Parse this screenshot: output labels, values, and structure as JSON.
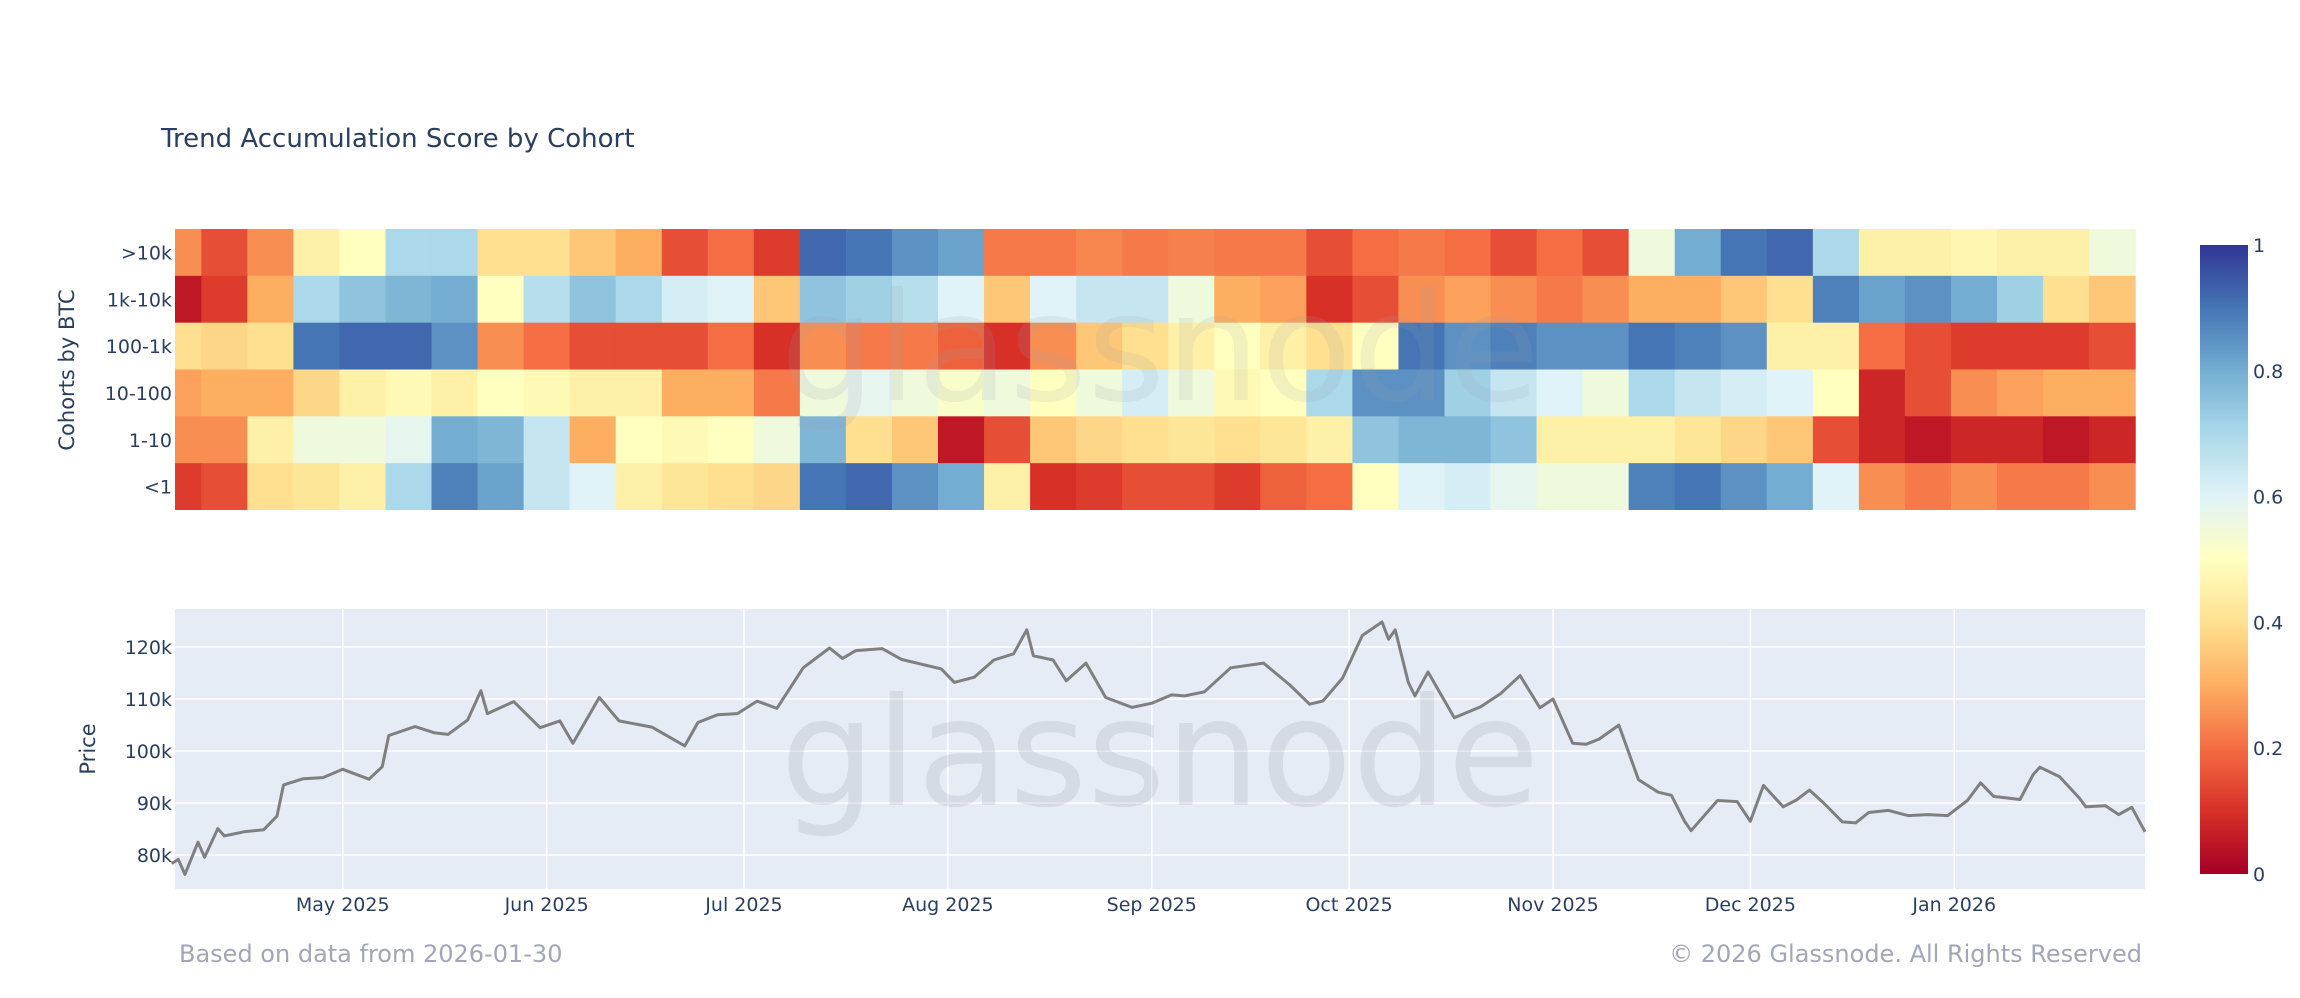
{
  "title": "Trend Accumulation Score by Cohort",
  "footer": {
    "left": "Based on data from 2026-01-30",
    "right": "© 2026 Glassnode. All Rights Reserved"
  },
  "watermark": "glassnode",
  "chart_data": [
    {
      "type": "heatmap",
      "title": "Trend Accumulation Score by Cohort",
      "ylabel": "Cohorts by BTC",
      "xrange": [
        "2025-04-05",
        "2026-01-30"
      ],
      "categories": [
        ">10k",
        "1k-10k",
        "100-1k",
        "10-100",
        "1-10",
        "<1"
      ],
      "x": [
        "2025-04-06",
        "2025-04-13",
        "2025-04-20",
        "2025-04-27",
        "2025-05-04",
        "2025-05-11",
        "2025-05-18",
        "2025-05-25",
        "2025-06-01",
        "2025-06-08",
        "2025-06-15",
        "2025-06-22",
        "2025-06-29",
        "2025-07-06",
        "2025-07-13",
        "2025-07-20",
        "2025-07-27",
        "2025-08-03",
        "2025-08-10",
        "2025-08-17",
        "2025-08-24",
        "2025-08-31",
        "2025-09-07",
        "2025-09-14",
        "2025-09-21",
        "2025-09-28",
        "2025-10-05",
        "2025-10-12",
        "2025-10-19",
        "2025-10-26",
        "2025-11-02",
        "2025-11-09",
        "2025-11-16",
        "2025-11-23",
        "2025-11-30",
        "2025-12-07",
        "2025-12-14",
        "2025-12-21",
        "2025-12-28",
        "2026-01-04",
        "2026-01-11",
        "2026-01-18",
        "2026-01-25"
      ],
      "z": [
        [
          0.25,
          0.15,
          0.25,
          0.45,
          0.5,
          0.7,
          0.7,
          0.4,
          0.4,
          0.35,
          0.3,
          0.15,
          0.2,
          0.12,
          0.92,
          0.9,
          0.85,
          0.82,
          0.22,
          0.22,
          0.24,
          0.22,
          0.23,
          0.22,
          0.22,
          0.15,
          0.2,
          0.22,
          0.2,
          0.15,
          0.2,
          0.15,
          0.55,
          0.8,
          0.9,
          0.92,
          0.7,
          0.45,
          0.45,
          0.47,
          0.45,
          0.45,
          0.55
        ],
        [
          0.05,
          0.12,
          0.3,
          0.7,
          0.75,
          0.78,
          0.8,
          0.5,
          0.68,
          0.75,
          0.7,
          0.62,
          0.6,
          0.35,
          0.75,
          0.72,
          0.68,
          0.6,
          0.35,
          0.6,
          0.65,
          0.65,
          0.55,
          0.3,
          0.28,
          0.1,
          0.15,
          0.25,
          0.28,
          0.25,
          0.22,
          0.25,
          0.3,
          0.3,
          0.35,
          0.4,
          0.88,
          0.82,
          0.85,
          0.8,
          0.72,
          0.4,
          0.35
        ],
        [
          0.4,
          0.38,
          0.4,
          0.9,
          0.92,
          0.92,
          0.85,
          0.25,
          0.2,
          0.15,
          0.15,
          0.15,
          0.2,
          0.1,
          0.25,
          0.22,
          0.22,
          0.18,
          0.1,
          0.25,
          0.35,
          0.4,
          0.45,
          0.5,
          0.45,
          0.4,
          0.5,
          0.9,
          0.85,
          0.88,
          0.85,
          0.85,
          0.9,
          0.88,
          0.85,
          0.45,
          0.45,
          0.2,
          0.15,
          0.12,
          0.12,
          0.12,
          0.15
        ],
        [
          0.28,
          0.3,
          0.3,
          0.38,
          0.45,
          0.48,
          0.45,
          0.5,
          0.48,
          0.45,
          0.45,
          0.3,
          0.3,
          0.22,
          0.55,
          0.58,
          0.55,
          0.52,
          0.55,
          0.5,
          0.55,
          0.62,
          0.55,
          0.48,
          0.5,
          0.7,
          0.85,
          0.85,
          0.72,
          0.65,
          0.6,
          0.55,
          0.7,
          0.65,
          0.62,
          0.6,
          0.5,
          0.08,
          0.15,
          0.25,
          0.28,
          0.3,
          0.3
        ],
        [
          0.25,
          0.25,
          0.45,
          0.55,
          0.55,
          0.58,
          0.8,
          0.78,
          0.65,
          0.3,
          0.5,
          0.48,
          0.5,
          0.55,
          0.78,
          0.4,
          0.35,
          0.05,
          0.15,
          0.35,
          0.38,
          0.4,
          0.42,
          0.4,
          0.42,
          0.45,
          0.75,
          0.78,
          0.78,
          0.75,
          0.45,
          0.45,
          0.45,
          0.42,
          0.38,
          0.35,
          0.15,
          0.08,
          0.05,
          0.08,
          0.08,
          0.05,
          0.08
        ],
        [
          0.12,
          0.15,
          0.4,
          0.42,
          0.45,
          0.7,
          0.88,
          0.82,
          0.65,
          0.6,
          0.45,
          0.42,
          0.4,
          0.38,
          0.9,
          0.92,
          0.85,
          0.8,
          0.45,
          0.1,
          0.12,
          0.15,
          0.15,
          0.12,
          0.18,
          0.2,
          0.5,
          0.6,
          0.62,
          0.58,
          0.55,
          0.55,
          0.88,
          0.9,
          0.85,
          0.8,
          0.6,
          0.25,
          0.22,
          0.25,
          0.22,
          0.22,
          0.25
        ]
      ],
      "colorbar": {
        "range": [
          0,
          1
        ],
        "ticks": [
          "0",
          "0.2",
          "0.4",
          "0.6",
          "0.8",
          "1"
        ]
      },
      "colorscale": [
        [
          0,
          "#a50026"
        ],
        [
          0.1,
          "#d73027"
        ],
        [
          0.2,
          "#f46d43"
        ],
        [
          0.3,
          "#fdae61"
        ],
        [
          0.4,
          "#fee090"
        ],
        [
          0.5,
          "#ffffbf"
        ],
        [
          0.6,
          "#e0f3f8"
        ],
        [
          0.7,
          "#abd9e9"
        ],
        [
          0.8,
          "#74add1"
        ],
        [
          0.9,
          "#4575b4"
        ],
        [
          1,
          "#313695"
        ]
      ]
    },
    {
      "type": "line",
      "ylabel": "Price",
      "xrange": [
        "2025-04-05",
        "2026-01-30"
      ],
      "ylim": [
        73500,
        127300
      ],
      "grid": true,
      "background": "#e5ecf6",
      "line_color": "#7f7f7f",
      "xticks": [
        {
          "date": "2025-05-01",
          "label": "May 2025"
        },
        {
          "date": "2025-06-01",
          "label": "Jun 2025"
        },
        {
          "date": "2025-07-01",
          "label": "Jul 2025"
        },
        {
          "date": "2025-08-01",
          "label": "Aug 2025"
        },
        {
          "date": "2025-09-01",
          "label": "Sep 2025"
        },
        {
          "date": "2025-10-01",
          "label": "Oct 2025"
        },
        {
          "date": "2025-11-01",
          "label": "Nov 2025"
        },
        {
          "date": "2025-12-01",
          "label": "Dec 2025"
        },
        {
          "date": "2026-01-01",
          "label": "Jan 2026"
        }
      ],
      "yticks": [
        {
          "value": 80000,
          "label": "80k"
        },
        {
          "value": 90000,
          "label": "90k"
        },
        {
          "value": 100000,
          "label": "100k"
        },
        {
          "value": 110000,
          "label": "110k"
        },
        {
          "value": 120000,
          "label": "120k"
        }
      ],
      "x": [
        "2025-04-05",
        "2025-04-06",
        "2025-04-07",
        "2025-04-09",
        "2025-04-10",
        "2025-04-12",
        "2025-04-13",
        "2025-04-16",
        "2025-04-19",
        "2025-04-21",
        "2025-04-22",
        "2025-04-25",
        "2025-04-28",
        "2025-05-01",
        "2025-05-05",
        "2025-05-07",
        "2025-05-08",
        "2025-05-12",
        "2025-05-15",
        "2025-05-17",
        "2025-05-20",
        "2025-05-22",
        "2025-05-23",
        "2025-05-27",
        "2025-05-31",
        "2025-06-03",
        "2025-06-05",
        "2025-06-09",
        "2025-06-12",
        "2025-06-17",
        "2025-06-22",
        "2025-06-24",
        "2025-06-27",
        "2025-06-30",
        "2025-07-03",
        "2025-07-06",
        "2025-07-10",
        "2025-07-14",
        "2025-07-16",
        "2025-07-18",
        "2025-07-22",
        "2025-07-25",
        "2025-07-31",
        "2025-08-02",
        "2025-08-05",
        "2025-08-08",
        "2025-08-11",
        "2025-08-13",
        "2025-08-14",
        "2025-08-17",
        "2025-08-19",
        "2025-08-22",
        "2025-08-25",
        "2025-08-29",
        "2025-09-01",
        "2025-09-04",
        "2025-09-06",
        "2025-09-09",
        "2025-09-13",
        "2025-09-18",
        "2025-09-22",
        "2025-09-25",
        "2025-09-27",
        "2025-09-30",
        "2025-10-03",
        "2025-10-06",
        "2025-10-07",
        "2025-10-08",
        "2025-10-10",
        "2025-10-11",
        "2025-10-13",
        "2025-10-17",
        "2025-10-21",
        "2025-10-24",
        "2025-10-27",
        "2025-10-30",
        "2025-11-01",
        "2025-11-04",
        "2025-11-06",
        "2025-11-08",
        "2025-11-11",
        "2025-11-12",
        "2025-11-14",
        "2025-11-17",
        "2025-11-19",
        "2025-11-21",
        "2025-11-22",
        "2025-11-26",
        "2025-11-29",
        "2025-12-01",
        "2025-12-03",
        "2025-12-06",
        "2025-12-08",
        "2025-12-10",
        "2025-12-12",
        "2025-12-15",
        "2025-12-17",
        "2025-12-19",
        "2025-12-22",
        "2025-12-25",
        "2025-12-28",
        "2025-12-31",
        "2026-01-03",
        "2026-01-05",
        "2026-01-07",
        "2026-01-11",
        "2026-01-13",
        "2026-01-14",
        "2026-01-17",
        "2026-01-20",
        "2026-01-21",
        "2026-01-24",
        "2026-01-26",
        "2026-01-28",
        "2026-01-30"
      ],
      "y": [
        78400,
        79200,
        76300,
        82500,
        79600,
        85100,
        83700,
        84500,
        84900,
        87500,
        93500,
        94700,
        94900,
        96500,
        94600,
        97000,
        103000,
        104700,
        103500,
        103200,
        106000,
        111600,
        107200,
        109500,
        104500,
        105800,
        101500,
        110300,
        105800,
        104600,
        101000,
        105500,
        107000,
        107200,
        109600,
        108200,
        116000,
        119800,
        117800,
        119300,
        119700,
        117600,
        115800,
        113200,
        114200,
        117500,
        118700,
        123300,
        118300,
        117500,
        113500,
        116900,
        110300,
        108400,
        109200,
        110800,
        110600,
        111400,
        116000,
        116900,
        112700,
        109000,
        109600,
        114000,
        122200,
        124800,
        121500,
        123300,
        113200,
        110600,
        115200,
        106400,
        108500,
        111000,
        114500,
        108300,
        110000,
        101500,
        101300,
        102300,
        105000,
        101500,
        94500,
        92100,
        91500,
        86500,
        84700,
        90500,
        90300,
        86500,
        93400,
        89300,
        90600,
        92500,
        90200,
        86400,
        86200,
        88200,
        88600,
        87600,
        87800,
        87600,
        90500,
        93900,
        91300,
        90700,
        95500,
        96900,
        95100,
        91000,
        89300,
        89500,
        87800,
        89200,
        84500
      ]
    }
  ]
}
